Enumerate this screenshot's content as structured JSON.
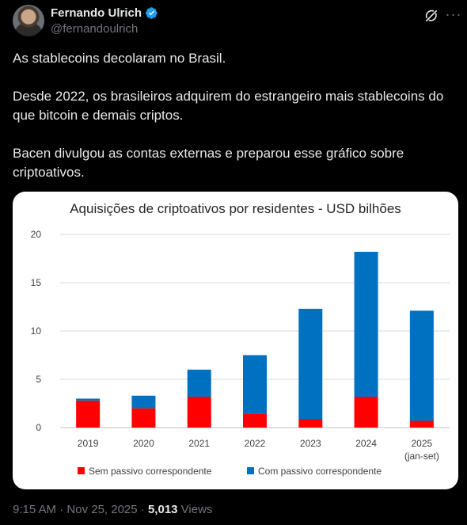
{
  "author": {
    "name": "Fernando Ulrich",
    "handle": "@fernandoulrich"
  },
  "tweet": {
    "paragraphs": [
      "As stablecoins decolaram no Brasil.",
      "Desde 2022, os brasileiros adquirem do estrangeiro mais stablecoins do que bitcoin e demais criptos.",
      "Bacen divulgou as contas externas e preparou esse gráfico sobre criptoativos."
    ]
  },
  "meta": {
    "time": "9:15 AM",
    "sep1": " · ",
    "date": "Nov 25, 2025",
    "sep2": " · ",
    "views_count": "5,013",
    "views_label": " Views"
  },
  "icons": {
    "verified": "verified-badge-icon",
    "grok": "grok-icon",
    "more": "more-icon"
  },
  "colors": {
    "accent": "#1d9bf0",
    "sem_passivo": "#ff0000",
    "com_passivo": "#0070c0"
  },
  "chart_data": {
    "type": "bar",
    "stacked": true,
    "title": "Aquisições de criptoativos por residentes - USD bilhões",
    "categories": [
      "2019",
      "2020",
      "2021",
      "2022",
      "2023",
      "2024",
      "2025"
    ],
    "category_sublabels": [
      "",
      "",
      "",
      "",
      "",
      "",
      "(jan-set)"
    ],
    "series": [
      {
        "name": "Sem passivo correspondente",
        "color": "#ff0000",
        "values": [
          2.8,
          2.0,
          3.2,
          1.4,
          0.9,
          3.2,
          0.7
        ]
      },
      {
        "name": "Com passivo correspondente",
        "color": "#0070c0",
        "values": [
          0.2,
          1.3,
          2.8,
          6.1,
          11.4,
          15.0,
          11.4
        ]
      }
    ],
    "ylim": [
      0,
      20
    ],
    "yticks": [
      0,
      5,
      10,
      15,
      20
    ],
    "grid": true,
    "legend": "bottom"
  }
}
